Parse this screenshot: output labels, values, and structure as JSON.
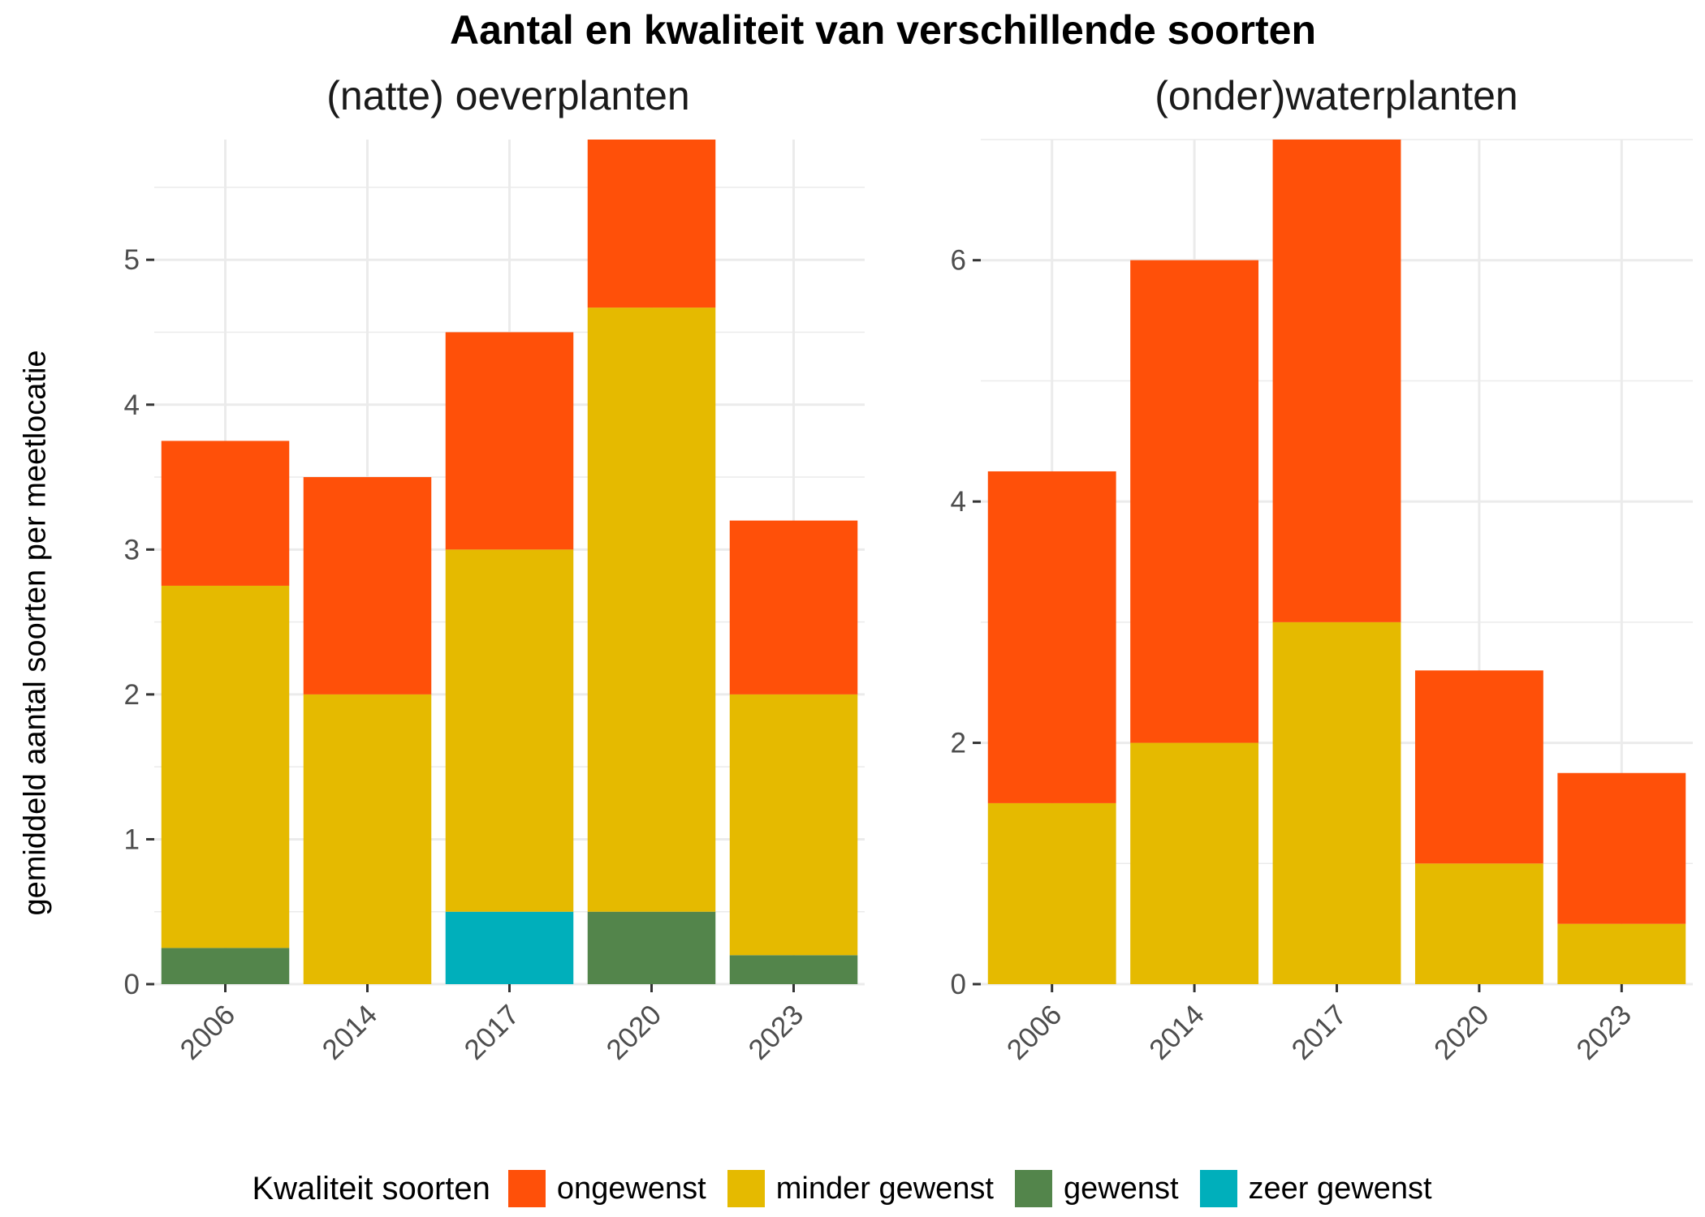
{
  "title": "Aantal en kwaliteit van verschillende soorten",
  "ylabel": "gemiddeld aantal soorten per meetlocatie",
  "legend": {
    "title": "Kwaliteit soorten",
    "position": "bottom",
    "items": [
      {
        "label": "ongewenst",
        "color": "#FF5009"
      },
      {
        "label": "minder gewenst",
        "color": "#E5BA00"
      },
      {
        "label": "gewenst",
        "color": "#53854B"
      },
      {
        "label": "zeer gewenst",
        "color": "#00AFBB"
      }
    ]
  },
  "chart_data": [
    {
      "type": "bar",
      "stacked": true,
      "title": "(natte) oeverplanten",
      "categories": [
        "2006",
        "2014",
        "2017",
        "2020",
        "2023"
      ],
      "y_ticks": [
        "0",
        "1",
        "2",
        "3",
        "4",
        "5"
      ],
      "ylim": [
        0,
        5.83
      ],
      "grid": true,
      "series": [
        {
          "name": "zeer gewenst",
          "color": "#00AFBB",
          "values": [
            0,
            0,
            0.5,
            0,
            0
          ]
        },
        {
          "name": "gewenst",
          "color": "#53854B",
          "values": [
            0.25,
            0,
            0,
            0.5,
            0.2
          ]
        },
        {
          "name": "minder gewenst",
          "color": "#E5BA00",
          "values": [
            2.5,
            2.0,
            2.5,
            4.17,
            1.8
          ]
        },
        {
          "name": "ongewenst",
          "color": "#FF5009",
          "values": [
            1.0,
            1.5,
            1.5,
            1.16,
            1.2
          ]
        }
      ]
    },
    {
      "type": "bar",
      "stacked": true,
      "title": "(onder)waterplanten",
      "categories": [
        "2006",
        "2014",
        "2017",
        "2020",
        "2023"
      ],
      "y_ticks": [
        "0",
        "2",
        "4",
        "6"
      ],
      "ylim": [
        0,
        7
      ],
      "grid": true,
      "series": [
        {
          "name": "zeer gewenst",
          "color": "#00AFBB",
          "values": [
            0,
            0,
            0,
            0,
            0
          ]
        },
        {
          "name": "gewenst",
          "color": "#53854B",
          "values": [
            0,
            0,
            0,
            0,
            0
          ]
        },
        {
          "name": "minder gewenst",
          "color": "#E5BA00",
          "values": [
            1.5,
            2.0,
            3.0,
            1.0,
            0.5
          ]
        },
        {
          "name": "ongewenst",
          "color": "#FF5009",
          "values": [
            2.75,
            4.0,
            4.0,
            1.6,
            1.25
          ]
        }
      ]
    }
  ]
}
